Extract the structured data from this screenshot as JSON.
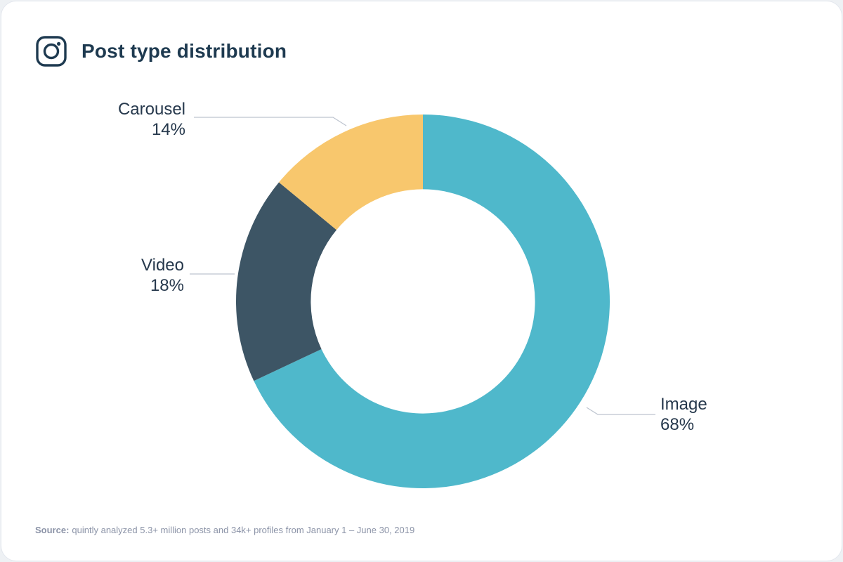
{
  "header": {
    "title": "Post type distribution"
  },
  "chart_data": {
    "type": "pie",
    "subtype": "donut",
    "title": "Post type distribution",
    "start_angle_deg": 0,
    "direction": "clockwise",
    "inner_radius_ratio": 0.6,
    "legend_position": "callout-labels",
    "slices": [
      {
        "label": "Image",
        "value": 68,
        "value_label": "68%",
        "color": "#4fb8cb"
      },
      {
        "label": "Video",
        "value": 18,
        "value_label": "18%",
        "color": "#3d5565"
      },
      {
        "label": "Carousel",
        "value": 14,
        "value_label": "14%",
        "color": "#f8c76d"
      }
    ]
  },
  "footer": {
    "source_prefix": "Source:",
    "source_text": "quintly analyzed 5.3+ million posts and 34k+ profiles from January 1 – June 30, 2019"
  }
}
